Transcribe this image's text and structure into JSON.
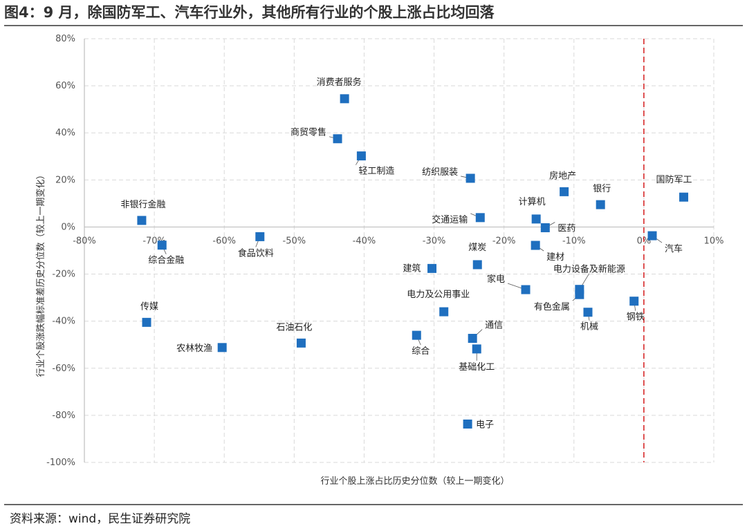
{
  "figure": {
    "title": "图4：9 月，除国防军工、汽车行业外，其他所有行业的个股上涨占比均回落",
    "source": "资料来源：wind，民生证券研究院"
  },
  "chart_data": {
    "type": "scatter",
    "title": "图4：9 月，除国防军工、汽车行业外，其他所有行业的个股上涨占比均回落",
    "xlabel": "行业个股上涨占比历史分位数（较上一期变化）",
    "ylabel": "行业个股涨跌幅标准差历史分位数（较上一期变化）",
    "xlim": [
      -80,
      10
    ],
    "ylim": [
      -100,
      80
    ],
    "x_ticks": [
      -80,
      -70,
      -60,
      -50,
      -40,
      -30,
      -20,
      -10,
      0,
      10
    ],
    "y_ticks": [
      80,
      60,
      40,
      20,
      0,
      -20,
      -40,
      -60,
      -80,
      -100
    ],
    "x_tick_labels": [
      "-80%",
      "-70%",
      "-60%",
      "-50%",
      "-40%",
      "-30%",
      "-20%",
      "-10%",
      "0%",
      "10%"
    ],
    "y_tick_labels": [
      "80%",
      "60%",
      "40%",
      "20%",
      "0%",
      "-20%",
      "-40%",
      "-60%",
      "-80%",
      "-100%"
    ],
    "grid": true,
    "reference_line": {
      "x": 0,
      "color": "#d62728",
      "style": "dashed"
    },
    "marker_color": "#1f6fbf",
    "points": [
      {
        "name": "消费者服务",
        "x": -42.8,
        "y": 54.5
      },
      {
        "name": "商贸零售",
        "x": -43.8,
        "y": 37.5
      },
      {
        "name": "轻工制造",
        "x": -40.4,
        "y": 30.2
      },
      {
        "name": "纺织服装",
        "x": -24.8,
        "y": 20.7
      },
      {
        "name": "房地产",
        "x": -11.4,
        "y": 15.0
      },
      {
        "name": "银行",
        "x": -6.2,
        "y": 9.5
      },
      {
        "name": "国防军工",
        "x": 5.7,
        "y": 12.7
      },
      {
        "name": "非银行金融",
        "x": -71.8,
        "y": 2.8
      },
      {
        "name": "计算机",
        "x": -15.4,
        "y": 3.4
      },
      {
        "name": "交通运输",
        "x": -23.4,
        "y": 4.0
      },
      {
        "name": "医药",
        "x": -14.1,
        "y": -0.3
      },
      {
        "name": "食品饮料",
        "x": -54.9,
        "y": -4.1
      },
      {
        "name": "汽车",
        "x": 1.2,
        "y": -3.7
      },
      {
        "name": "综合金融",
        "x": -68.9,
        "y": -7.7
      },
      {
        "name": "建材",
        "x": -15.5,
        "y": -7.8
      },
      {
        "name": "煤炭",
        "x": -23.8,
        "y": -16.0
      },
      {
        "name": "建筑",
        "x": -30.3,
        "y": -17.6
      },
      {
        "name": "家电",
        "x": -16.9,
        "y": -26.6
      },
      {
        "name": "电力设备及新能源",
        "x": -9.2,
        "y": -26.5
      },
      {
        "name": "有色金属",
        "x": -9.2,
        "y": -28.7
      },
      {
        "name": "钢铁",
        "x": -1.4,
        "y": -31.5
      },
      {
        "name": "电力及公用事业",
        "x": -28.6,
        "y": -36.0
      },
      {
        "name": "机械",
        "x": -8.0,
        "y": -36.2
      },
      {
        "name": "传媒",
        "x": -71.1,
        "y": -40.5
      },
      {
        "name": "石油石化",
        "x": -49.0,
        "y": -49.3
      },
      {
        "name": "综合",
        "x": -32.5,
        "y": -46.0
      },
      {
        "name": "通信",
        "x": -24.5,
        "y": -47.3
      },
      {
        "name": "农林牧渔",
        "x": -60.3,
        "y": -51.2
      },
      {
        "name": "基础化工",
        "x": -23.9,
        "y": -51.8
      },
      {
        "name": "电子",
        "x": -25.2,
        "y": -83.7
      }
    ]
  }
}
